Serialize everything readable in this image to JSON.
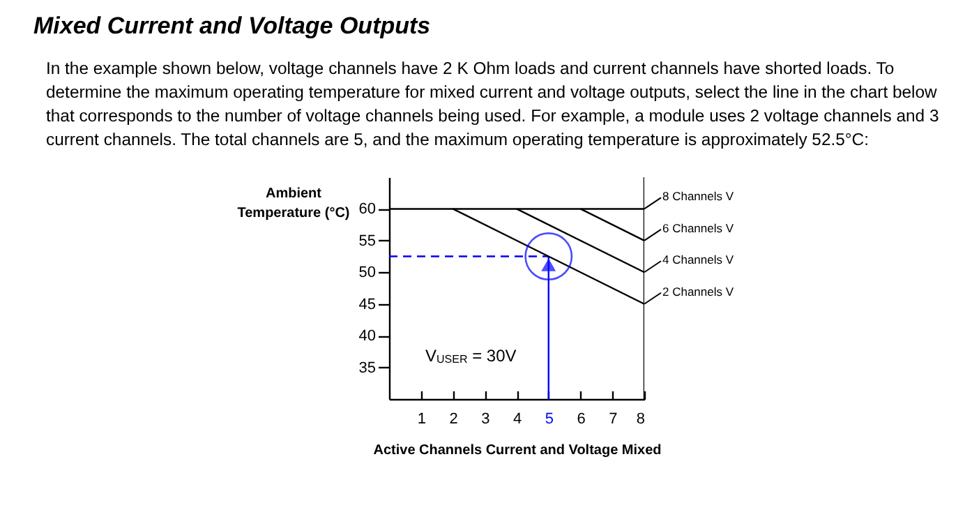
{
  "chart_data": {
    "type": "line",
    "title": "Mixed Current and Voltage Outputs",
    "subtitle": "In the example shown below, voltage channels have 2 K Ohm loads and current channels have shorted loads. To determine the maximum operating temperature for mixed current and voltage outputs, select the line in the chart below that corresponds to the number of voltage channels being used.  For example, a module uses 2 voltage channels and 3 current channels. The total channels are 5, and the maximum operating temperature is approximately 52.5°C:",
    "xlabel": "Active Channels Current and Voltage Mixed",
    "ylabel": "Ambient\nTemperature (°C)",
    "annotations": [
      "V$_{USER}$ = 30V"
    ],
    "series": [
      {
        "name": "8 Channels V",
        "color": "#000000",
        "x": [
          0,
          8
        ],
        "values": [
          60,
          60
        ]
      },
      {
        "name": "6 Channels V",
        "color": "#000000",
        "x": [
          6,
          8
        ],
        "values": [
          60,
          55
        ]
      },
      {
        "name": "4 Channels V",
        "color": "#000000",
        "x": [
          4,
          8
        ],
        "values": [
          60,
          50
        ]
      },
      {
        "name": "2 Channels V",
        "color": "#000000",
        "x": [
          2,
          8
        ],
        "values": [
          60,
          45
        ]
      },
      {
        "type": "scatter",
        "color": "#0000ff",
        "marker": "circle",
        "x": [
          5
        ],
        "values": [
          52.5
        ]
      }
    ],
    "ref_lines": [
      {
        "axis": "y",
        "value": 52.5,
        "color": "#0000ff",
        "line_style": "dashed"
      },
      {
        "axis": "x",
        "value": 5,
        "color": "#0000ff"
      },
      {
        "axis": "x",
        "value": 8,
        "color": "#000000"
      }
    ],
    "xlim": [
      0,
      8
    ],
    "xticks": [
      1,
      2,
      3,
      4,
      5,
      6,
      7,
      8
    ],
    "ylim": [
      30,
      65
    ],
    "yticks": [
      35,
      40,
      45,
      50,
      55,
      60
    ],
    "grid": false,
    "legend": "right",
    "marker": "none",
    "line_style": "solid"
  }
}
